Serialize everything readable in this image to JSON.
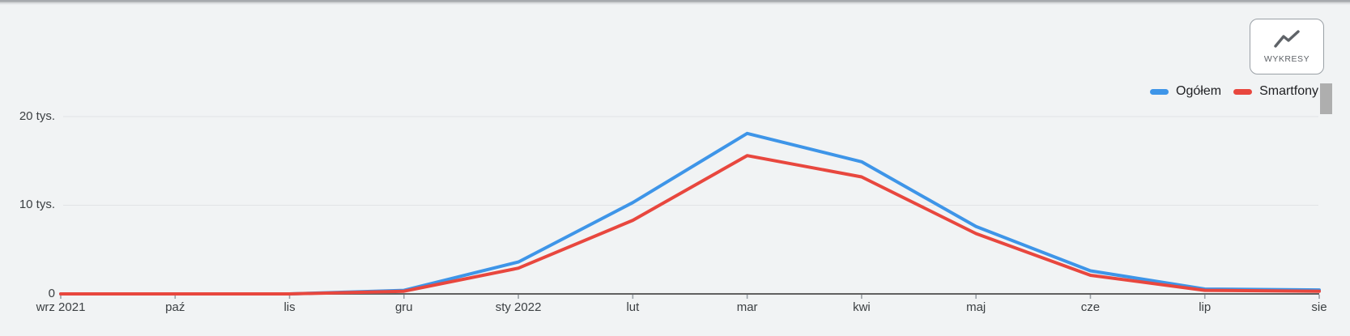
{
  "toolbar": {
    "charts_button": {
      "label": "WYKRESY",
      "icon": "line-chart-icon"
    }
  },
  "scrollbar": {
    "thumb_color": "#aeaeae"
  },
  "colors": {
    "background": "#f1f3f4",
    "axis": "#616161",
    "tick": "#9aa0a6",
    "gridline": "#e1e3e6",
    "label_text": "#3c4043",
    "legend_text": "#202124",
    "series_ogolem": "#3e95e8",
    "series_smartfony": "#e8473e"
  },
  "chart_data": {
    "type": "line",
    "categories": [
      "wrz 2021",
      "paź",
      "lis",
      "gru",
      "sty 2022",
      "lut",
      "mar",
      "kwi",
      "maj",
      "cze",
      "lip",
      "sie"
    ],
    "series": [
      {
        "name": "Ogółem",
        "color": "#3e95e8",
        "values": [
          0,
          0,
          0,
          400,
          3600,
          10300,
          18100,
          14900,
          7600,
          2600,
          550,
          450
        ]
      },
      {
        "name": "Smartfony",
        "color": "#e8473e",
        "values": [
          0,
          0,
          0,
          300,
          2900,
          8300,
          15600,
          13200,
          6800,
          2100,
          400,
          300
        ]
      }
    ],
    "yticks": [
      {
        "label": "20 tys.",
        "value": 20000
      },
      {
        "label": "10 tys.",
        "value": 10000
      },
      {
        "label": "0",
        "value": 0
      }
    ],
    "ylim": [
      0,
      22000
    ],
    "grid": true,
    "legend_position": "top-right"
  }
}
